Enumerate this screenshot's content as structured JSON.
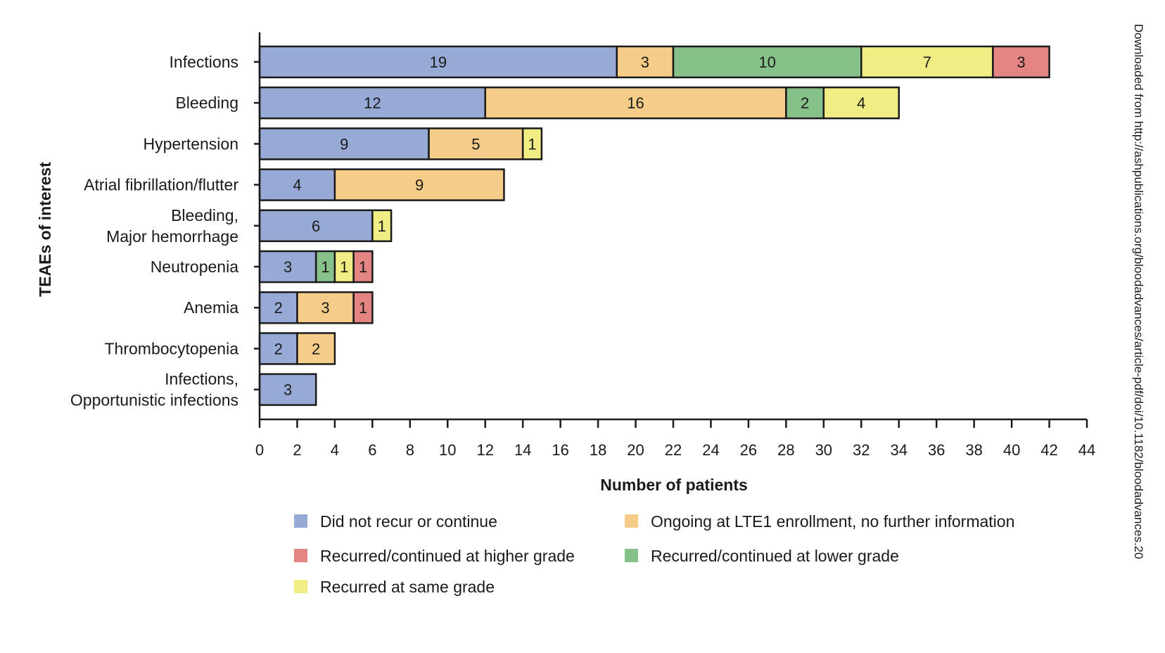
{
  "chart_data": {
    "type": "bar",
    "orientation": "horizontal",
    "stacked": true,
    "xlabel": "Number of patients",
    "ylabel": "TEAEs of interest",
    "xlim": [
      0,
      44
    ],
    "xticks": [
      "0",
      "2",
      "4",
      "6",
      "8",
      "10",
      "12",
      "14",
      "16",
      "18",
      "20",
      "22",
      "24",
      "26",
      "28",
      "30",
      "32",
      "34",
      "36",
      "38",
      "40",
      "42",
      "44"
    ],
    "grid": false,
    "legend_position": "bottom",
    "categories": [
      [
        "Infections"
      ],
      [
        "Bleeding"
      ],
      [
        "Hypertension"
      ],
      [
        "Atrial fibrillation/flutter"
      ],
      [
        "Bleeding,",
        "Major hemorrhage"
      ],
      [
        "Neutropenia"
      ],
      [
        "Anemia"
      ],
      [
        "Thrombocytopenia"
      ],
      [
        "Infections,",
        "Opportunistic infections"
      ]
    ],
    "series": [
      {
        "name": "Did not recur or continue",
        "color": "#97aad6",
        "values": [
          19,
          12,
          9,
          4,
          6,
          3,
          2,
          2,
          3
        ]
      },
      {
        "name": "Ongoing at LTE1 enrollment, no further information",
        "color": "#f6cd88",
        "values": [
          3,
          16,
          5,
          9,
          0,
          0,
          3,
          2,
          0
        ]
      },
      {
        "name": "Recurred/continued at lower grade",
        "color": "#86c18a",
        "values": [
          10,
          2,
          0,
          0,
          0,
          1,
          0,
          0,
          0
        ]
      },
      {
        "name": "Recurred at same grade",
        "color": "#f1ed85",
        "values": [
          7,
          4,
          1,
          0,
          1,
          1,
          0,
          0,
          0
        ]
      },
      {
        "name": "Recurred/continued at higher grade",
        "color": "#e48583",
        "values": [
          3,
          0,
          0,
          0,
          0,
          1,
          1,
          0,
          0
        ]
      }
    ],
    "legend_order": [
      0,
      1,
      4,
      2,
      3
    ]
  },
  "watermark": "Downloaded from http://ashpublications.org/bloodadvances/article-pdf/doi/10.1182/bloodadvances.20"
}
